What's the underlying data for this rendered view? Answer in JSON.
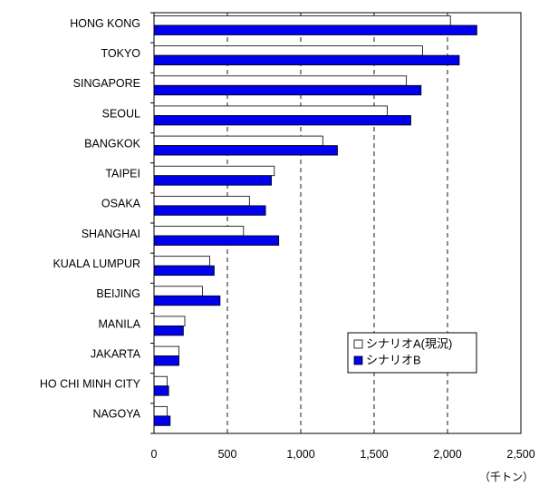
{
  "chart_data": {
    "type": "bar",
    "orientation": "horizontal",
    "categories": [
      "HONG KONG",
      "TOKYO",
      "SINGAPORE",
      "SEOUL",
      "BANGKOK",
      "TAIPEI",
      "OSAKA",
      "SHANGHAI",
      "KUALA LUMPUR",
      "BEIJING",
      "MANILA",
      "JAKARTA",
      "HO CHI MINH CITY",
      "NAGOYA"
    ],
    "series": [
      {
        "name": "シナリオA(現況)",
        "color": "#ffffff",
        "values": [
          2020,
          1830,
          1720,
          1590,
          1150,
          820,
          650,
          610,
          380,
          330,
          210,
          170,
          90,
          90
        ]
      },
      {
        "name": "シナリオB",
        "color": "#0000ee",
        "values": [
          2200,
          2080,
          1820,
          1750,
          1250,
          800,
          760,
          850,
          410,
          450,
          200,
          170,
          100,
          110
        ]
      }
    ],
    "xlim": [
      0,
      2500
    ],
    "xticks": [
      0,
      500,
      1000,
      1500,
      2000,
      2500
    ],
    "xtick_labels": [
      "0",
      "500",
      "1,000",
      "1,500",
      "2,000",
      "2,500"
    ],
    "unit": "（千トン）",
    "grid": "vertical dashed",
    "legend_position": "lower-right inside"
  }
}
